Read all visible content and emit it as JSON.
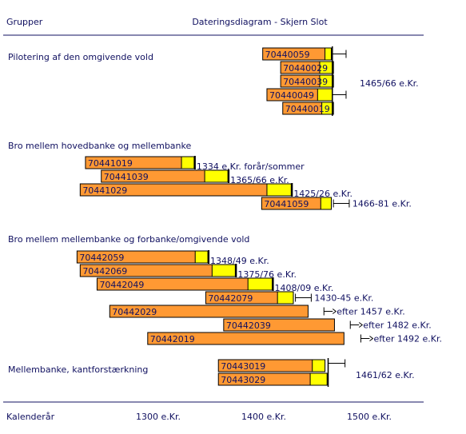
{
  "chart_data": {
    "type": "bar",
    "title": "Dateringsdiagram - Skjern Slot",
    "header_left": "Grupper",
    "xlabel": "Kalenderår",
    "xticks": [
      {
        "value": 1300,
        "label": "1300 e.Kr."
      },
      {
        "value": 1400,
        "label": "1400 e.Kr."
      },
      {
        "value": 1500,
        "label": "1500 e.Kr."
      }
    ],
    "xlim": [
      1185,
      1545
    ],
    "colors": {
      "heartwood": "#ff9933",
      "sapwood": "#ffff00",
      "outline": "#000000",
      "text": "#101060",
      "rule": "#101060"
    },
    "groups": [
      {
        "label": "Pilotering af den omgivende vold",
        "summary": {
          "label": "1465/66 e.Kr.",
          "start": 1465,
          "end": 1478
        },
        "samples": [
          {
            "id": "70440059",
            "start": 1399,
            "end": 1464,
            "sap_start": 1458
          },
          {
            "id": "70440029",
            "start": 1416,
            "end": 1466,
            "sap_start": 1453
          },
          {
            "id": "70440039",
            "start": 1416,
            "end": 1466,
            "sap_start": 1453
          },
          {
            "id": "70440049",
            "start": 1403,
            "end": 1465,
            "sap_start": 1451
          },
          {
            "id": "70440019",
            "start": 1418,
            "end": 1466,
            "sap_start": 1455
          }
        ]
      },
      {
        "label": "Bro mellem hovedbanke og mellembanke",
        "samples": [
          {
            "id": "70441019",
            "start": 1231,
            "end": 1334,
            "sap_start": 1322,
            "note": "1334 e.Kr. forår/sommer"
          },
          {
            "id": "70441039",
            "start": 1246,
            "end": 1366,
            "sap_start": 1344,
            "note": "1365/66 e.Kr."
          },
          {
            "id": "70441029",
            "start": 1226,
            "end": 1426,
            "sap_start": 1403,
            "note": "1425/26 e.Kr."
          },
          {
            "id": "70441059",
            "start": 1398,
            "end": 1464,
            "sap_start": 1454,
            "note": "1466-81 e.Kr.",
            "range_start": 1466,
            "range_end": 1481
          }
        ]
      },
      {
        "label": "Bro mellem mellembanke og forbanke/omgivende vold",
        "samples": [
          {
            "id": "70442059",
            "start": 1223,
            "end": 1347,
            "sap_start": 1335,
            "note": "1348/49 e.Kr."
          },
          {
            "id": "70442069",
            "start": 1226,
            "end": 1373,
            "sap_start": 1351,
            "note": "1375/76 e.Kr."
          },
          {
            "id": "70442049",
            "start": 1242,
            "end": 1408,
            "sap_start": 1385,
            "note": "1408/09 e.Kr."
          },
          {
            "id": "70442079",
            "start": 1345,
            "end": 1428,
            "sap_start": 1413,
            "note": "1430-45 e.Kr.",
            "range_start": 1430,
            "range_end": 1445
          },
          {
            "id": "70442029",
            "start": 1254,
            "end": 1442,
            "note": "efter 1457 e.Kr.",
            "after": 1457
          },
          {
            "id": "70442039",
            "start": 1362,
            "end": 1467,
            "note": "efter 1482 e.Kr.",
            "after": 1482
          },
          {
            "id": "70442019",
            "start": 1290,
            "end": 1476,
            "note": "efter 1492 e.Kr.",
            "after": 1492
          }
        ]
      },
      {
        "label": "Mellembanke, kantforstærkning",
        "summary": {
          "label": "1461/62 e.Kr.",
          "start": 1461,
          "end": 1477
        },
        "samples": [
          {
            "id": "70443019",
            "start": 1357,
            "end": 1458,
            "sap_start": 1446
          },
          {
            "id": "70443029",
            "start": 1357,
            "end": 1460,
            "sap_start": 1444
          }
        ]
      }
    ]
  }
}
